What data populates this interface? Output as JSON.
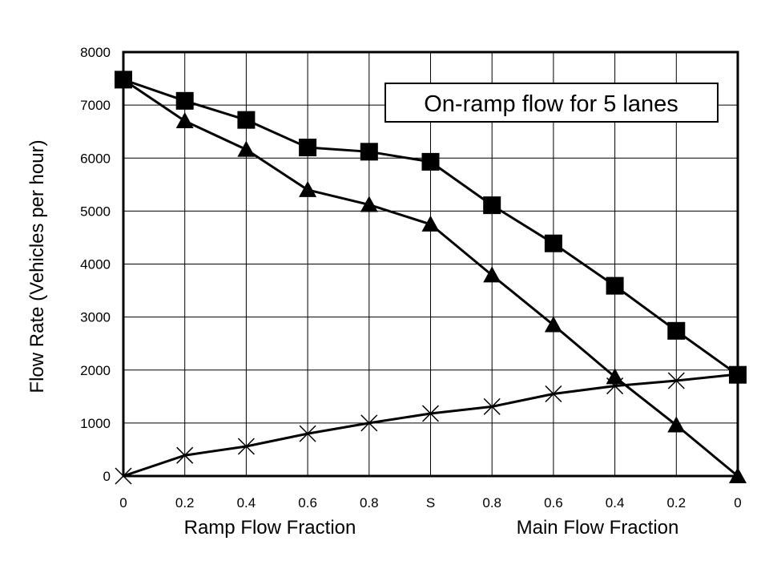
{
  "chart_data": {
    "type": "line",
    "annotation": "On-ramp flow for 5 lanes",
    "ylabel": "Flow Rate (Vehicles per hour)",
    "xlabel_left": "Ramp Flow Fraction",
    "xlabel_right": "Main Flow Fraction",
    "categories": [
      "0",
      "0.2",
      "0.4",
      "0.6",
      "0.8",
      "S",
      "0.8",
      "0.6",
      "0.4",
      "0.2",
      "0"
    ],
    "ylim": [
      0,
      8000
    ],
    "yticks": [
      0,
      1000,
      2000,
      3000,
      4000,
      5000,
      6000,
      7000,
      8000
    ],
    "grid": true,
    "series": [
      {
        "marker": "square",
        "values": [
          7480,
          7080,
          6720,
          6200,
          6120,
          5930,
          5110,
          4390,
          3590,
          2740,
          1910
        ]
      },
      {
        "marker": "triangle",
        "values": [
          7480,
          6700,
          6160,
          5400,
          5120,
          4750,
          3790,
          2850,
          1870,
          960,
          0
        ]
      },
      {
        "marker": "x",
        "values": [
          0,
          390,
          560,
          800,
          1000,
          1180,
          1310,
          1550,
          1700,
          1800,
          1920
        ]
      }
    ]
  }
}
